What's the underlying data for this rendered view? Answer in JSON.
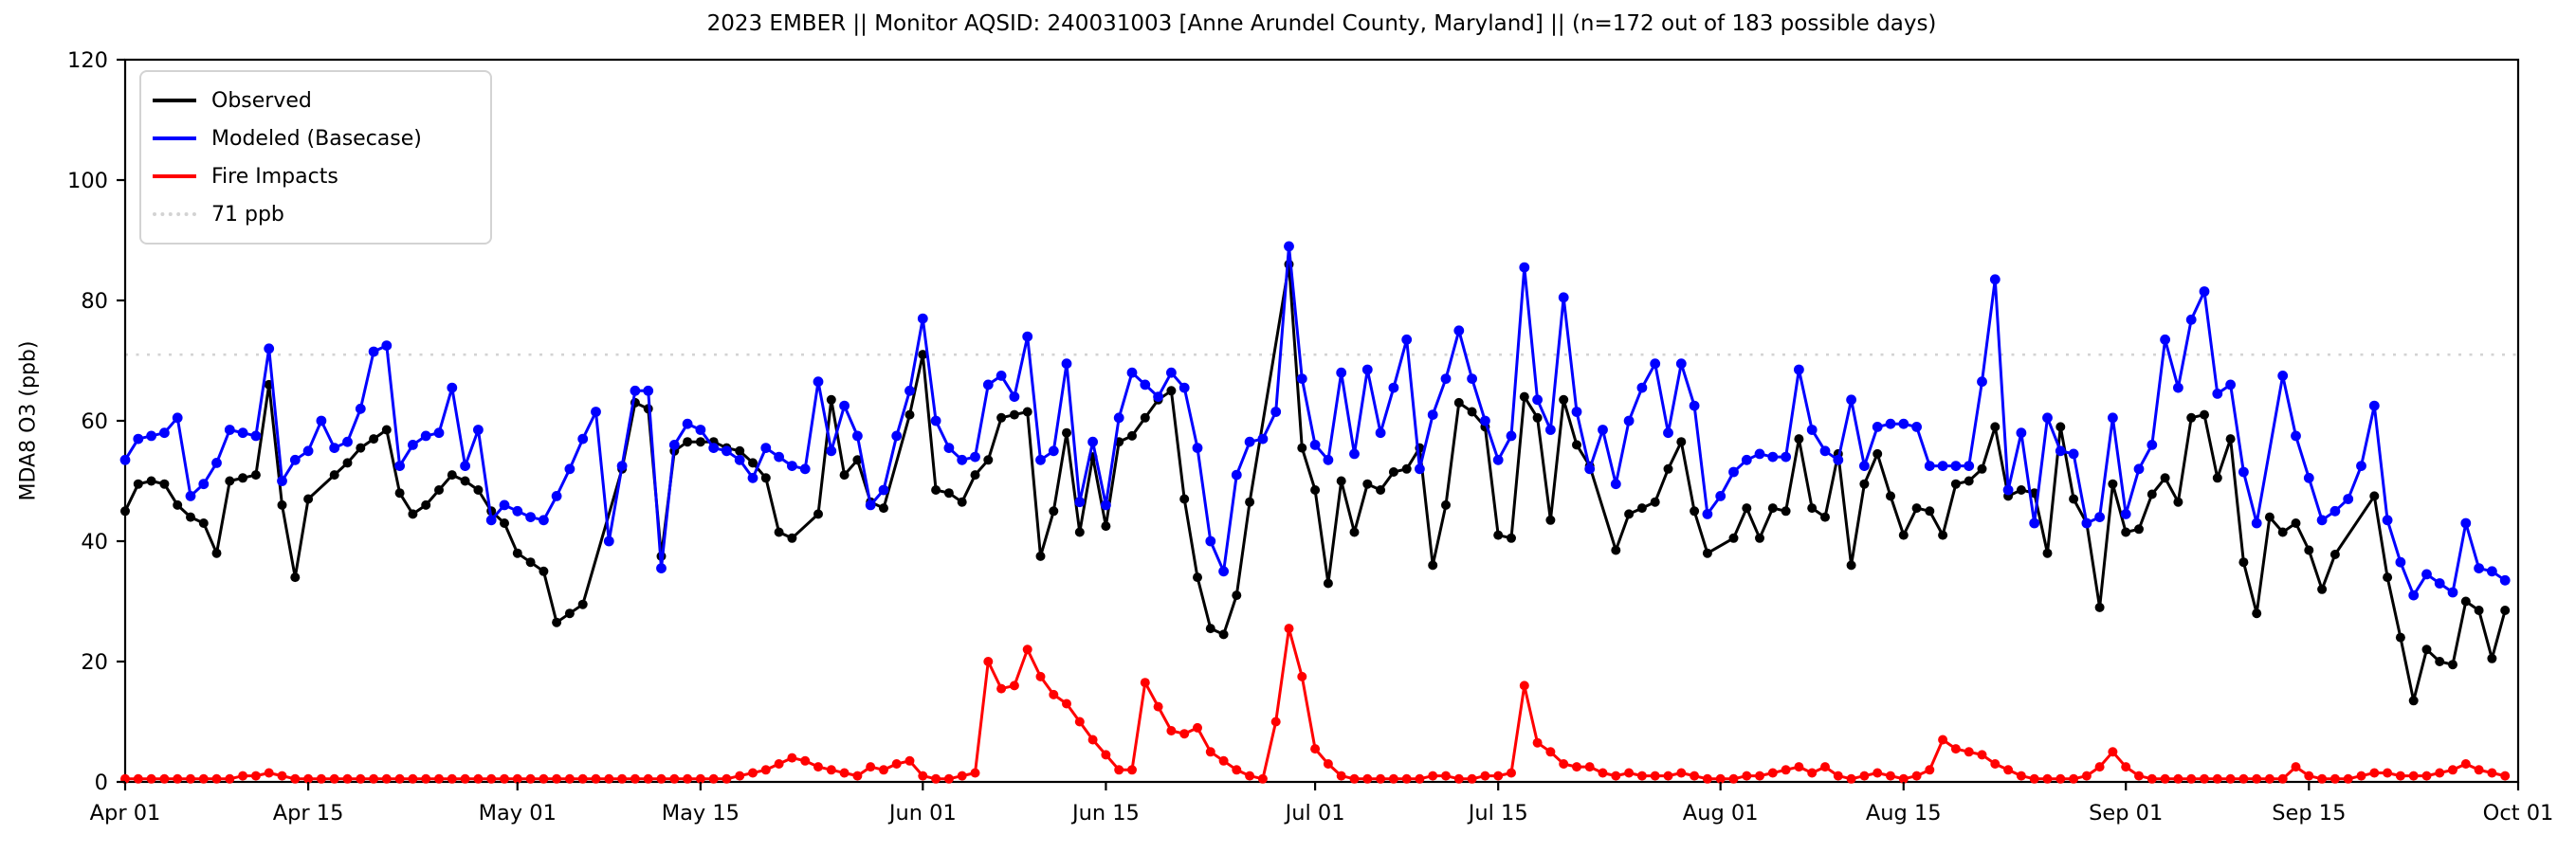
{
  "title": "2023 EMBER || Monitor AQSID: 240031003 [Anne Arundel County, Maryland] || (n=172 out of 183 possible days)",
  "chart_data": {
    "type": "line",
    "title": "2023 EMBER || Monitor AQSID: 240031003 [Anne Arundel County, Maryland] || (n=172 out of 183 possible days)",
    "ylabel": "MDA8 O3 (ppb)",
    "ylim": [
      0,
      120
    ],
    "yticks": [
      0,
      20,
      40,
      60,
      80,
      100,
      120
    ],
    "n_days": 183,
    "x_start_label": "Apr 01",
    "x_end_label": "Oct 01",
    "grid": false,
    "legend_position": "upper-left",
    "xticks": [
      {
        "day": 0,
        "label": "Apr 01"
      },
      {
        "day": 14,
        "label": "Apr 15"
      },
      {
        "day": 30,
        "label": "May 01"
      },
      {
        "day": 44,
        "label": "May 15"
      },
      {
        "day": 61,
        "label": "Jun 01"
      },
      {
        "day": 75,
        "label": "Jun 15"
      },
      {
        "day": 91,
        "label": "Jul 01"
      },
      {
        "day": 105,
        "label": "Jul 15"
      },
      {
        "day": 122,
        "label": "Aug 01"
      },
      {
        "day": 136,
        "label": "Aug 15"
      },
      {
        "day": 153,
        "label": "Sep 01"
      },
      {
        "day": 167,
        "label": "Sep 15"
      },
      {
        "day": 183,
        "label": "Oct 01"
      }
    ],
    "threshold": {
      "value": 71,
      "label": "71 ppb",
      "color": "#d3d3d3",
      "style": "dotted"
    },
    "series": [
      {
        "name": "Observed",
        "color": "#000000",
        "values": [
          45,
          49.5,
          50,
          49.5,
          46,
          44,
          43,
          38,
          50,
          50.5,
          51,
          66,
          46,
          34,
          47,
          null,
          51,
          53,
          55.5,
          57,
          58.5,
          48,
          44.5,
          46,
          48.5,
          51,
          50,
          48.5,
          45,
          43,
          38,
          36.5,
          35,
          26.5,
          28,
          29.5,
          null,
          null,
          52,
          63,
          62,
          37.5,
          55,
          56.5,
          56.5,
          56.5,
          55.5,
          55,
          53,
          50.5,
          41.5,
          40.5,
          null,
          44.5,
          63.5,
          51,
          53.5,
          46.5,
          45.5,
          null,
          61,
          71,
          48.5,
          48,
          46.5,
          51,
          53.5,
          60.5,
          61,
          61.5,
          37.5,
          45,
          58,
          41.5,
          54,
          42.5,
          56.5,
          57.5,
          60.5,
          63.5,
          65,
          47,
          34,
          25.5,
          24.5,
          31,
          46.5,
          null,
          null,
          86,
          55.5,
          48.5,
          33,
          50,
          41.5,
          49.5,
          48.5,
          51.5,
          52,
          55.5,
          36,
          46,
          63,
          61.5,
          59,
          41,
          40.5,
          64,
          60.5,
          43.5,
          63.5,
          56,
          52.5,
          null,
          38.5,
          44.5,
          45.5,
          46.5,
          52,
          56.5,
          45,
          38,
          null,
          40.5,
          45.5,
          40.5,
          45.5,
          45,
          57,
          45.5,
          44,
          54.5,
          36,
          49.5,
          54.5,
          47.5,
          41,
          45.5,
          45,
          41,
          49.5,
          50,
          52,
          59,
          47.5,
          48.5,
          48,
          38,
          59,
          47,
          43,
          29,
          49.5,
          41.5,
          42,
          47.8,
          50.5,
          46.5,
          60.5,
          61,
          50.5,
          57,
          36.5,
          28,
          44,
          41.5,
          43,
          38.5,
          32,
          37.8,
          null,
          null,
          47.5,
          34,
          24,
          13.5,
          22,
          20,
          19.5,
          30,
          28.5,
          20.5,
          28.5
        ]
      },
      {
        "name": "Modeled (Basecase)",
        "color": "#0000ff",
        "values": [
          53.5,
          57,
          57.5,
          58,
          60.5,
          47.5,
          49.5,
          53,
          58.5,
          58,
          57.5,
          72,
          50,
          53.5,
          55,
          60,
          55.5,
          56.5,
          62,
          71.5,
          72.5,
          52.5,
          56,
          57.5,
          58,
          65.5,
          52.5,
          58.5,
          43.5,
          46,
          45,
          44,
          43.5,
          47.5,
          52,
          57,
          61.5,
          40,
          52.5,
          65,
          65,
          35.5,
          56,
          59.5,
          58.5,
          55.5,
          55,
          53.5,
          50.5,
          55.5,
          54,
          52.5,
          52,
          66.5,
          55,
          62.5,
          57.5,
          46,
          48.5,
          57.5,
          65,
          77,
          60,
          55.5,
          53.5,
          54,
          66,
          67.5,
          64,
          74,
          53.5,
          55,
          69.5,
          46.5,
          56.5,
          46,
          60.5,
          68,
          66,
          64,
          68,
          65.5,
          55.5,
          40,
          35,
          51,
          56.5,
          57,
          61.5,
          89,
          67,
          56,
          53.5,
          68,
          54.5,
          68.5,
          58,
          65.5,
          73.5,
          52,
          61,
          67,
          75,
          67,
          60,
          53.5,
          57.5,
          85.5,
          63.5,
          58.5,
          80.5,
          61.5,
          52,
          58.5,
          49.5,
          60,
          65.5,
          69.5,
          58,
          69.5,
          62.5,
          44.5,
          47.5,
          51.5,
          53.5,
          54.5,
          54,
          54,
          68.5,
          58.5,
          55,
          53.5,
          63.5,
          52.5,
          59,
          59.5,
          59.5,
          59,
          52.5,
          52.5,
          52.5,
          52.5,
          66.5,
          83.5,
          48.5,
          58,
          43,
          60.5,
          55,
          54.5,
          43,
          44,
          60.5,
          44.5,
          52,
          56,
          73.5,
          65.5,
          76.8,
          81.5,
          64.5,
          66,
          51.5,
          43,
          null,
          67.5,
          57.5,
          50.5,
          43.5,
          45,
          47,
          52.5,
          62.5,
          43.5,
          36.5,
          31,
          34.5,
          33,
          31.5,
          43,
          35.5,
          35,
          33.5
        ]
      },
      {
        "name": "Fire Impacts",
        "color": "#ff0000",
        "values": [
          0.5,
          0.5,
          0.5,
          0.5,
          0.5,
          0.5,
          0.5,
          0.5,
          0.5,
          1,
          1,
          1.5,
          1,
          0.5,
          0.5,
          0.5,
          0.5,
          0.5,
          0.5,
          0.5,
          0.5,
          0.5,
          0.5,
          0.5,
          0.5,
          0.5,
          0.5,
          0.5,
          0.5,
          0.5,
          0.5,
          0.5,
          0.5,
          0.5,
          0.5,
          0.5,
          0.5,
          0.5,
          0.5,
          0.5,
          0.5,
          0.5,
          0.5,
          0.5,
          0.5,
          0.5,
          0.5,
          1,
          1.5,
          2,
          3,
          4,
          3.5,
          2.5,
          2,
          1.5,
          1,
          2.5,
          2,
          3,
          3.5,
          1,
          0.5,
          0.5,
          1,
          1.5,
          20,
          15.5,
          16,
          22,
          17.5,
          14.5,
          13,
          10,
          7,
          4.5,
          2,
          2,
          16.5,
          12.5,
          8.5,
          8,
          9,
          5,
          3.5,
          2,
          1,
          0.5,
          10,
          25.5,
          17.5,
          5.5,
          3,
          1,
          0.5,
          0.5,
          0.5,
          0.5,
          0.5,
          0.5,
          1,
          1,
          0.5,
          0.5,
          1,
          1,
          1.5,
          16,
          6.5,
          5,
          3,
          2.5,
          2.5,
          1.5,
          1,
          1.5,
          1,
          1,
          1,
          1.5,
          1,
          0.5,
          0.5,
          0.5,
          1,
          1,
          1.5,
          2,
          2.5,
          1.5,
          2.5,
          1,
          0.5,
          1,
          1.5,
          1,
          0.5,
          1,
          2,
          7,
          5.5,
          5,
          4.5,
          3,
          2,
          1,
          0.5,
          0.5,
          0.5,
          0.5,
          1,
          2.5,
          5,
          2.5,
          1,
          0.5,
          0.5,
          0.5,
          0.5,
          0.5,
          0.5,
          0.5,
          0.5,
          0.5,
          0.5,
          0.5,
          2.5,
          1,
          0.5,
          0.5,
          0.5,
          1,
          1.5,
          1.5,
          1,
          1,
          1,
          1.5,
          2,
          3,
          2,
          1.5,
          1
        ]
      }
    ]
  }
}
